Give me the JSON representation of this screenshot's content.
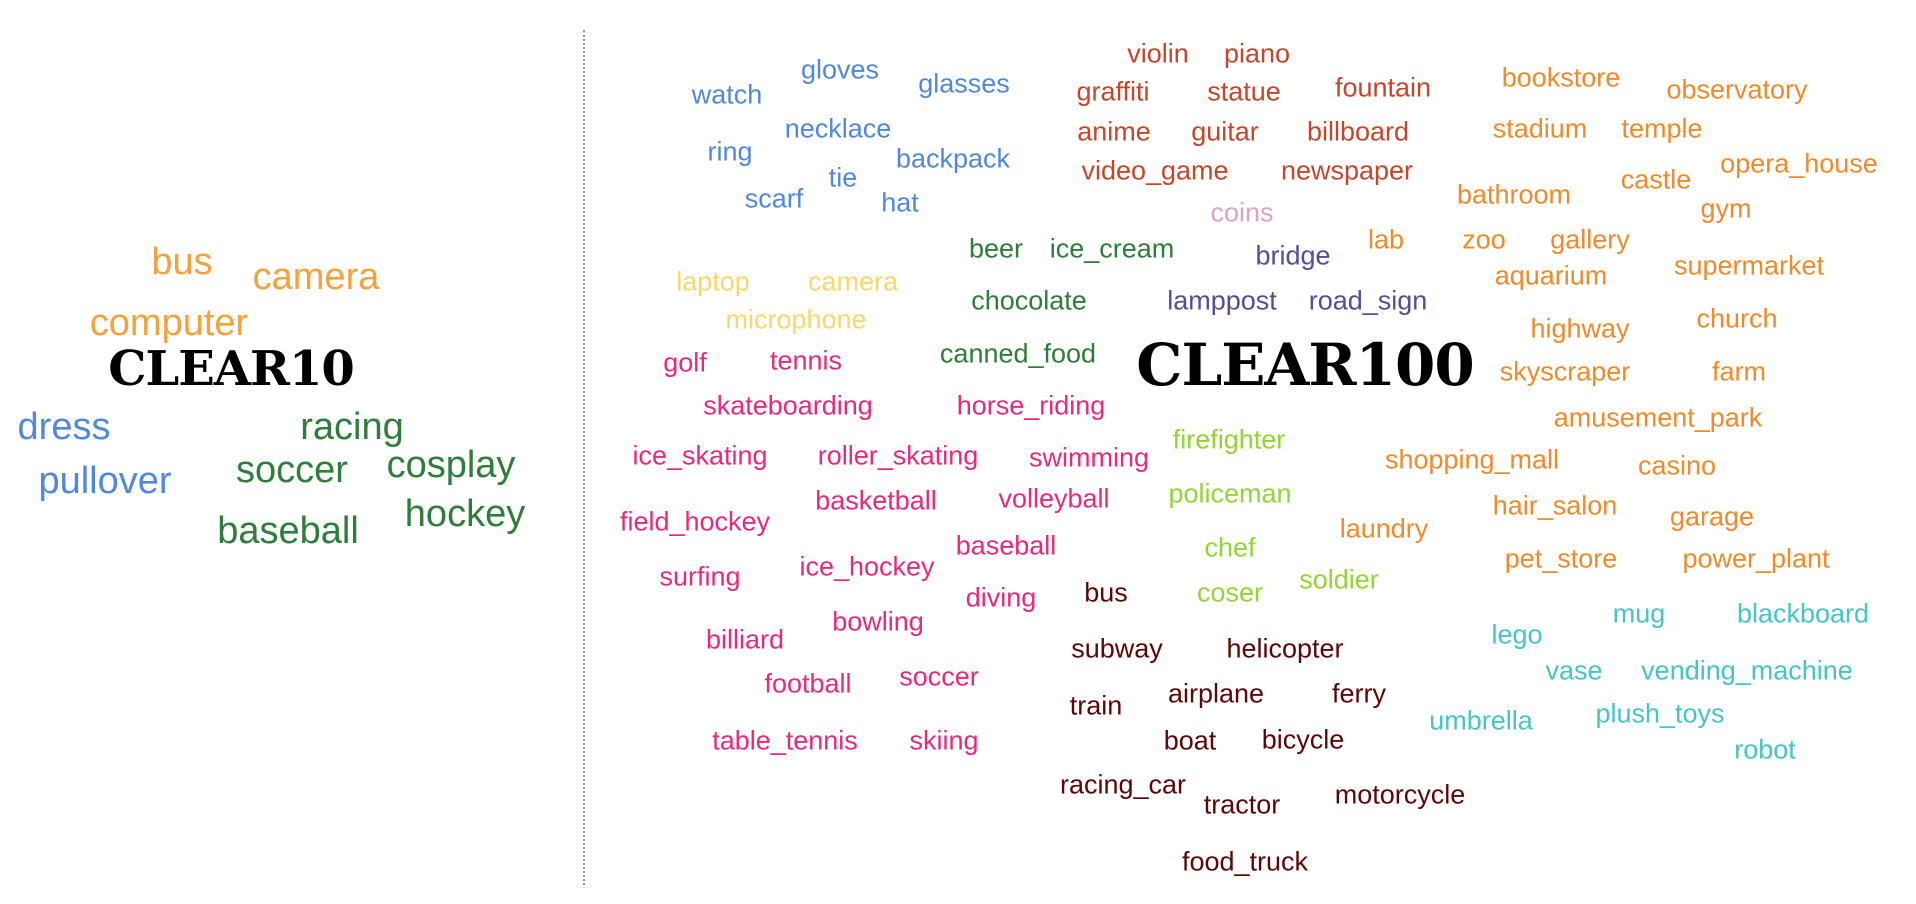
{
  "colors": {
    "orange": "#f4a23d",
    "blue": "#5188dd",
    "green": "#2e7d3a",
    "red": "#c4472b",
    "dark_orange": "#f08a2a",
    "pale_pink": "#d9a4c8",
    "purple": "#554c9c",
    "yellow": "#fad66d",
    "pink": "#e82a7e",
    "lime": "#93d437",
    "maroon": "#5e0606",
    "teal": "#46c4c8"
  },
  "clear10": {
    "title": "CLEAR10",
    "words": [
      {
        "text": "bus",
        "color": "orange"
      },
      {
        "text": "camera",
        "color": "orange"
      },
      {
        "text": "computer",
        "color": "orange"
      },
      {
        "text": "dress",
        "color": "blue"
      },
      {
        "text": "pullover",
        "color": "blue"
      },
      {
        "text": "racing",
        "color": "green"
      },
      {
        "text": "soccer",
        "color": "green"
      },
      {
        "text": "cosplay",
        "color": "green"
      },
      {
        "text": "baseball",
        "color": "green"
      },
      {
        "text": "hockey",
        "color": "green"
      }
    ]
  },
  "clear100": {
    "title": "CLEAR100",
    "words": [
      {
        "text": "gloves",
        "color": "blue"
      },
      {
        "text": "glasses",
        "color": "blue"
      },
      {
        "text": "watch",
        "color": "blue"
      },
      {
        "text": "necklace",
        "color": "blue"
      },
      {
        "text": "ring",
        "color": "blue"
      },
      {
        "text": "backpack",
        "color": "blue"
      },
      {
        "text": "tie",
        "color": "blue"
      },
      {
        "text": "scarf",
        "color": "blue"
      },
      {
        "text": "hat",
        "color": "blue"
      },
      {
        "text": "violin",
        "color": "red"
      },
      {
        "text": "piano",
        "color": "red"
      },
      {
        "text": "graffiti",
        "color": "red"
      },
      {
        "text": "statue",
        "color": "red"
      },
      {
        "text": "fountain",
        "color": "red"
      },
      {
        "text": "anime",
        "color": "red"
      },
      {
        "text": "guitar",
        "color": "red"
      },
      {
        "text": "billboard",
        "color": "red"
      },
      {
        "text": "video_game",
        "color": "red"
      },
      {
        "text": "newspaper",
        "color": "red"
      },
      {
        "text": "coins",
        "color": "pale_pink"
      },
      {
        "text": "bridge",
        "color": "purple"
      },
      {
        "text": "lamppost",
        "color": "purple"
      },
      {
        "text": "road_sign",
        "color": "purple"
      },
      {
        "text": "beer",
        "color": "green"
      },
      {
        "text": "ice_cream",
        "color": "green"
      },
      {
        "text": "chocolate",
        "color": "green"
      },
      {
        "text": "canned_food",
        "color": "green"
      },
      {
        "text": "laptop",
        "color": "yellow"
      },
      {
        "text": "camera",
        "color": "yellow"
      },
      {
        "text": "microphone",
        "color": "yellow"
      },
      {
        "text": "bookstore",
        "color": "dark_orange"
      },
      {
        "text": "observatory",
        "color": "dark_orange"
      },
      {
        "text": "stadium",
        "color": "dark_orange"
      },
      {
        "text": "temple",
        "color": "dark_orange"
      },
      {
        "text": "castle",
        "color": "dark_orange"
      },
      {
        "text": "opera_house",
        "color": "dark_orange"
      },
      {
        "text": "bathroom",
        "color": "dark_orange"
      },
      {
        "text": "gym",
        "color": "dark_orange"
      },
      {
        "text": "lab",
        "color": "dark_orange"
      },
      {
        "text": "zoo",
        "color": "dark_orange"
      },
      {
        "text": "gallery",
        "color": "dark_orange"
      },
      {
        "text": "aquarium",
        "color": "dark_orange"
      },
      {
        "text": "supermarket",
        "color": "dark_orange"
      },
      {
        "text": "highway",
        "color": "dark_orange"
      },
      {
        "text": "church",
        "color": "dark_orange"
      },
      {
        "text": "skyscraper",
        "color": "dark_orange"
      },
      {
        "text": "farm",
        "color": "dark_orange"
      },
      {
        "text": "amusement_park",
        "color": "dark_orange"
      },
      {
        "text": "shopping_mall",
        "color": "dark_orange"
      },
      {
        "text": "casino",
        "color": "dark_orange"
      },
      {
        "text": "hair_salon",
        "color": "dark_orange"
      },
      {
        "text": "garage",
        "color": "dark_orange"
      },
      {
        "text": "laundry",
        "color": "dark_orange"
      },
      {
        "text": "pet_store",
        "color": "dark_orange"
      },
      {
        "text": "power_plant",
        "color": "dark_orange"
      },
      {
        "text": "golf",
        "color": "pink"
      },
      {
        "text": "tennis",
        "color": "pink"
      },
      {
        "text": "skateboarding",
        "color": "pink"
      },
      {
        "text": "horse_riding",
        "color": "pink"
      },
      {
        "text": "ice_skating",
        "color": "pink"
      },
      {
        "text": "roller_skating",
        "color": "pink"
      },
      {
        "text": "swimming",
        "color": "pink"
      },
      {
        "text": "field_hockey",
        "color": "pink"
      },
      {
        "text": "basketball",
        "color": "pink"
      },
      {
        "text": "volleyball",
        "color": "pink"
      },
      {
        "text": "baseball",
        "color": "pink"
      },
      {
        "text": "surfing",
        "color": "pink"
      },
      {
        "text": "ice_hockey",
        "color": "pink"
      },
      {
        "text": "diving",
        "color": "pink"
      },
      {
        "text": "bowling",
        "color": "pink"
      },
      {
        "text": "billiard",
        "color": "pink"
      },
      {
        "text": "football",
        "color": "pink"
      },
      {
        "text": "soccer",
        "color": "pink"
      },
      {
        "text": "table_tennis",
        "color": "pink"
      },
      {
        "text": "skiing",
        "color": "pink"
      },
      {
        "text": "firefighter",
        "color": "lime"
      },
      {
        "text": "policeman",
        "color": "lime"
      },
      {
        "text": "chef",
        "color": "lime"
      },
      {
        "text": "coser",
        "color": "lime"
      },
      {
        "text": "soldier",
        "color": "lime"
      },
      {
        "text": "bus",
        "color": "maroon"
      },
      {
        "text": "subway",
        "color": "maroon"
      },
      {
        "text": "helicopter",
        "color": "maroon"
      },
      {
        "text": "train",
        "color": "maroon"
      },
      {
        "text": "airplane",
        "color": "maroon"
      },
      {
        "text": "ferry",
        "color": "maroon"
      },
      {
        "text": "boat",
        "color": "maroon"
      },
      {
        "text": "bicycle",
        "color": "maroon"
      },
      {
        "text": "racing_car",
        "color": "maroon"
      },
      {
        "text": "tractor",
        "color": "maroon"
      },
      {
        "text": "motorcycle",
        "color": "maroon"
      },
      {
        "text": "food_truck",
        "color": "maroon"
      },
      {
        "text": "lego",
        "color": "teal"
      },
      {
        "text": "mug",
        "color": "teal"
      },
      {
        "text": "blackboard",
        "color": "teal"
      },
      {
        "text": "vase",
        "color": "teal"
      },
      {
        "text": "vending_machine",
        "color": "teal"
      },
      {
        "text": "umbrella",
        "color": "teal"
      },
      {
        "text": "plush_toys",
        "color": "teal"
      },
      {
        "text": "robot",
        "color": "teal"
      }
    ]
  }
}
